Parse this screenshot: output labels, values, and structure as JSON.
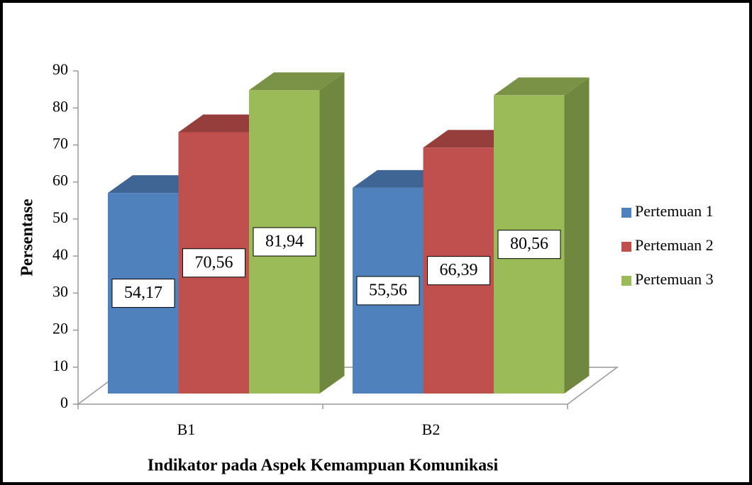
{
  "chart_data": {
    "type": "bar3d",
    "categories": [
      "B1",
      "B2"
    ],
    "series": [
      {
        "name": "Pertemuan 1",
        "color": "#4f81bd",
        "values": [
          54.17,
          55.56
        ],
        "value_labels": [
          "54,17",
          "55,56"
        ]
      },
      {
        "name": "Pertemuan 2",
        "color": "#c0504d",
        "values": [
          70.56,
          66.39
        ],
        "value_labels": [
          "70,56",
          "66,39"
        ]
      },
      {
        "name": "Pertemuan 3",
        "color": "#9bbb59",
        "values": [
          81.94,
          80.56
        ],
        "value_labels": [
          "81,94",
          "80,56"
        ]
      }
    ],
    "ylim": [
      0,
      90
    ],
    "yticks": [
      0,
      10,
      20,
      30,
      40,
      50,
      60,
      70,
      80,
      90
    ],
    "y_label": "Persentase",
    "x_label": "Indikator pada Aspek Kemampuan Komunikasi",
    "legend": "right"
  }
}
